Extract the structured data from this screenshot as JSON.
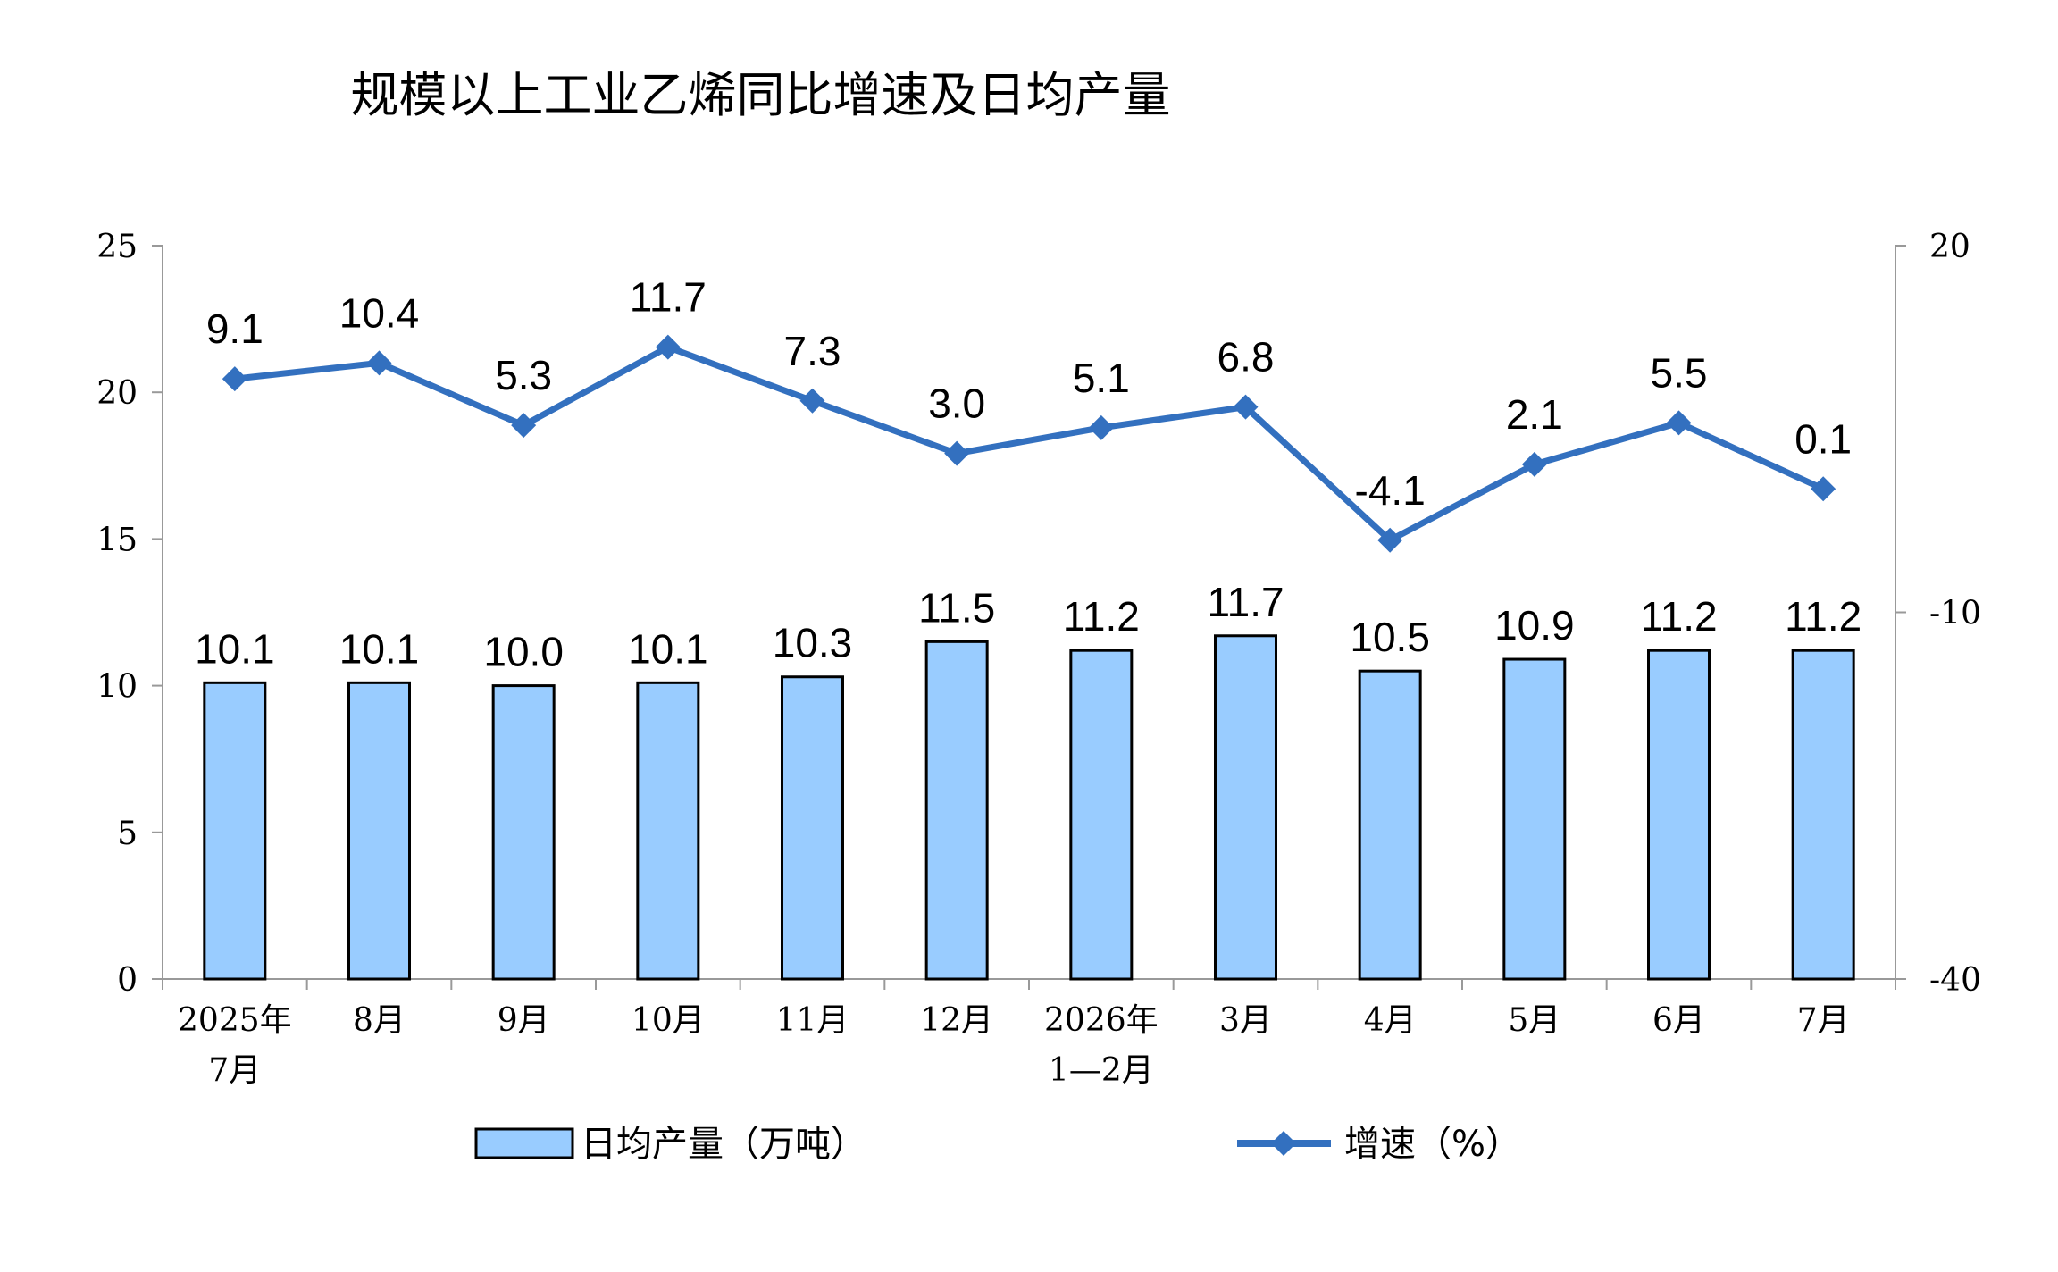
{
  "chart_data": {
    "type": "bar+line",
    "title": "规模以上工业乙烯同比增速及日均产量",
    "categories": [
      [
        "2025年",
        "7月"
      ],
      [
        "8月"
      ],
      [
        "9月"
      ],
      [
        "10月"
      ],
      [
        "11月"
      ],
      [
        "12月"
      ],
      [
        "2026年",
        "1—2月"
      ],
      [
        "3月"
      ],
      [
        "4月"
      ],
      [
        "5月"
      ],
      [
        "6月"
      ],
      [
        "7月"
      ]
    ],
    "series": [
      {
        "name": "日均产量（万吨）",
        "kind": "bar",
        "axis": "left",
        "color": "#99ccff",
        "values": [
          10.1,
          10.1,
          10.0,
          10.1,
          10.3,
          11.5,
          11.2,
          11.7,
          10.5,
          10.9,
          11.2,
          11.2
        ],
        "labels": [
          "10.1",
          "10.1",
          "10.0",
          "10.1",
          "10.3",
          "11.5",
          "11.2",
          "11.7",
          "10.5",
          "10.9",
          "11.2",
          "11.2"
        ]
      },
      {
        "name": "增速（%）",
        "kind": "line",
        "axis": "right",
        "color": "#3370bf",
        "values": [
          9.1,
          10.4,
          5.3,
          11.7,
          7.3,
          3.0,
          5.1,
          6.8,
          -4.1,
          2.1,
          5.5,
          0.1
        ],
        "labels": [
          "9.1",
          "10.4",
          "5.3",
          "11.7",
          "7.3",
          "3.0",
          "5.1",
          "6.8",
          "-4.1",
          "2.1",
          "5.5",
          "0.1"
        ]
      }
    ],
    "left_axis": {
      "range": [
        0,
        25
      ],
      "ticks": [
        "0",
        "5",
        "10",
        "15",
        "20",
        "25"
      ]
    },
    "right_axis": {
      "range": [
        -40,
        20
      ],
      "ticks": [
        "-40",
        "-10",
        "20"
      ]
    },
    "grid": false,
    "legend": "bottom"
  }
}
